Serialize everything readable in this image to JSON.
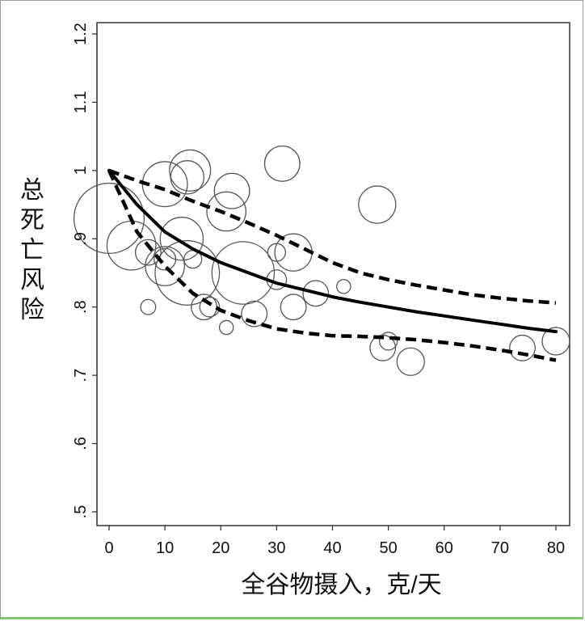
{
  "chart_data": {
    "type": "scatter",
    "xlabel": "全谷物摄入，克/天",
    "ylabel": "总死亡风险",
    "xlim": [
      0,
      80
    ],
    "ylim": [
      0.5,
      1.2
    ],
    "x_ticks": [
      {
        "value": 0,
        "label": "0"
      },
      {
        "value": 10,
        "label": "10"
      },
      {
        "value": 20,
        "label": "20"
      },
      {
        "value": 30,
        "label": "30"
      },
      {
        "value": 40,
        "label": "40"
      },
      {
        "value": 50,
        "label": "50"
      },
      {
        "value": 60,
        "label": "60"
      },
      {
        "value": 70,
        "label": "70"
      },
      {
        "value": 80,
        "label": "80"
      }
    ],
    "y_ticks": [
      {
        "value": 0.5,
        "label": ".5"
      },
      {
        "value": 0.6,
        "label": ".6"
      },
      {
        "value": 0.7,
        "label": ".7"
      },
      {
        "value": 0.8,
        "label": ".8"
      },
      {
        "value": 0.9,
        "label": ".9"
      },
      {
        "value": 1.0,
        "label": "1"
      },
      {
        "value": 1.1,
        "label": "1.1"
      },
      {
        "value": 1.2,
        "label": "1.2"
      }
    ],
    "grid": false,
    "bubble_color": "#555555",
    "line_color": "#000000",
    "series": [
      {
        "kind": "studies",
        "points": [
          {
            "x": 0,
            "y": 0.93,
            "w": 1.6
          },
          {
            "x": 4,
            "y": 0.89,
            "w": 1.05
          },
          {
            "x": 7,
            "y": 0.88,
            "w": 0.45
          },
          {
            "x": 7,
            "y": 0.8,
            "w": 0.18
          },
          {
            "x": 10,
            "y": 0.98,
            "w": 0.95
          },
          {
            "x": 10,
            "y": 0.87,
            "w": 0.35
          },
          {
            "x": 10,
            "y": 0.86,
            "w": 0.8
          },
          {
            "x": 13,
            "y": 0.9,
            "w": 0.9
          },
          {
            "x": 14,
            "y": 0.99,
            "w": 0.65
          },
          {
            "x": 14.5,
            "y": 1.0,
            "w": 0.85
          },
          {
            "x": 15,
            "y": 0.87,
            "w": 0.25
          },
          {
            "x": 14,
            "y": 0.85,
            "w": 1.45
          },
          {
            "x": 17,
            "y": 0.8,
            "w": 0.45
          },
          {
            "x": 18,
            "y": 0.8,
            "w": 0.3
          },
          {
            "x": 21,
            "y": 0.77,
            "w": 0.15
          },
          {
            "x": 22,
            "y": 0.97,
            "w": 0.7
          },
          {
            "x": 21,
            "y": 0.94,
            "w": 0.8
          },
          {
            "x": 24,
            "y": 0.85,
            "w": 1.4
          },
          {
            "x": 26,
            "y": 0.79,
            "w": 0.45
          },
          {
            "x": 30,
            "y": 0.88,
            "w": 0.25
          },
          {
            "x": 30,
            "y": 0.84,
            "w": 0.3
          },
          {
            "x": 31,
            "y": 1.01,
            "w": 0.7
          },
          {
            "x": 33,
            "y": 0.88,
            "w": 0.75
          },
          {
            "x": 33,
            "y": 0.8,
            "w": 0.45
          },
          {
            "x": 37,
            "y": 0.82,
            "w": 0.45
          },
          {
            "x": 42,
            "y": 0.83,
            "w": 0.15
          },
          {
            "x": 48,
            "y": 0.95,
            "w": 0.75
          },
          {
            "x": 49,
            "y": 0.74,
            "w": 0.45
          },
          {
            "x": 50,
            "y": 0.75,
            "w": 0.25
          },
          {
            "x": 54,
            "y": 0.72,
            "w": 0.5
          },
          {
            "x": 74,
            "y": 0.74,
            "w": 0.45
          },
          {
            "x": 80,
            "y": 0.75,
            "w": 0.5
          }
        ]
      },
      {
        "kind": "estimate",
        "x": [
          0,
          5,
          10,
          15,
          20,
          25,
          30,
          35,
          40,
          45,
          50,
          55,
          60,
          65,
          70,
          75,
          80
        ],
        "y": [
          1.0,
          0.95,
          0.91,
          0.885,
          0.865,
          0.85,
          0.835,
          0.825,
          0.815,
          0.807,
          0.8,
          0.793,
          0.787,
          0.781,
          0.775,
          0.769,
          0.764
        ]
      },
      {
        "kind": "upper_ci",
        "x": [
          0,
          5,
          10,
          15,
          20,
          25,
          30,
          35,
          40,
          45,
          50,
          55,
          60,
          65,
          70,
          75,
          80
        ],
        "y": [
          1.0,
          0.985,
          0.972,
          0.955,
          0.94,
          0.923,
          0.905,
          0.885,
          0.865,
          0.85,
          0.84,
          0.832,
          0.825,
          0.818,
          0.813,
          0.809,
          0.806
        ]
      },
      {
        "kind": "lower_ci",
        "x": [
          0,
          5,
          10,
          15,
          20,
          25,
          30,
          35,
          40,
          45,
          50,
          55,
          60,
          65,
          70,
          75,
          80
        ],
        "y": [
          1.0,
          0.91,
          0.86,
          0.82,
          0.795,
          0.78,
          0.768,
          0.762,
          0.758,
          0.757,
          0.755,
          0.752,
          0.748,
          0.743,
          0.737,
          0.73,
          0.722
        ]
      }
    ]
  }
}
